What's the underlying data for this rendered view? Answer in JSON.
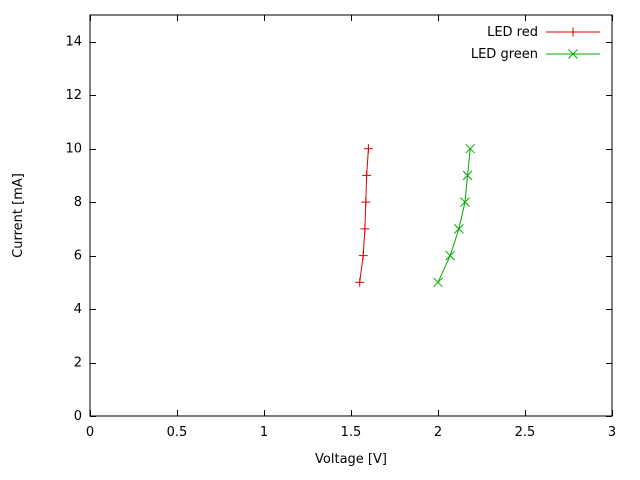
{
  "chart_data": {
    "type": "line",
    "title": "",
    "xlabel": "Voltage [V]",
    "ylabel": "Current [mA]",
    "xlim": [
      0,
      3
    ],
    "ylim": [
      0,
      15
    ],
    "xticks": [
      0,
      0.5,
      1,
      1.5,
      2,
      2.5,
      3
    ],
    "xtick_labels": [
      "0",
      "0.5",
      "1",
      "1.5",
      "2",
      "2.5",
      "3"
    ],
    "yticks": [
      0,
      2,
      4,
      6,
      8,
      10,
      12,
      14
    ],
    "ytick_labels": [
      "0",
      "2",
      "4",
      "6",
      "8",
      "10",
      "12",
      "14"
    ],
    "grid": false,
    "legend_position": "top-right-inside",
    "axis_color": "#000000",
    "background_color": "#ffffff",
    "series": [
      {
        "name": "LED red",
        "color": "#dd0000",
        "marker": "plus",
        "points": [
          [
            1.55,
            5
          ],
          [
            1.57,
            6
          ],
          [
            1.58,
            7
          ],
          [
            1.585,
            8
          ],
          [
            1.59,
            9
          ],
          [
            1.6,
            10
          ]
        ]
      },
      {
        "name": "LED green",
        "color": "#00aa00",
        "marker": "cross",
        "points": [
          [
            2.0,
            5
          ],
          [
            2.07,
            6
          ],
          [
            2.12,
            7
          ],
          [
            2.155,
            8
          ],
          [
            2.17,
            9
          ],
          [
            2.185,
            10
          ]
        ]
      }
    ]
  }
}
